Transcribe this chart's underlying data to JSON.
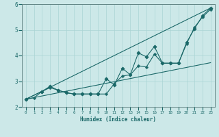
{
  "xlabel": "Humidex (Indice chaleur)",
  "ylabel": "",
  "xlim": [
    -0.5,
    23.5
  ],
  "ylim": [
    2,
    6
  ],
  "xticks": [
    0,
    1,
    2,
    3,
    4,
    5,
    6,
    7,
    8,
    9,
    10,
    11,
    12,
    13,
    14,
    15,
    16,
    17,
    18,
    19,
    20,
    21,
    22,
    23
  ],
  "yticks": [
    2,
    3,
    4,
    5,
    6
  ],
  "background_color": "#cce8e8",
  "grid_color": "#aad4d4",
  "line_color": "#1a6868",
  "lines": [
    {
      "x": [
        0,
        1,
        2,
        3,
        4,
        5,
        6,
        7,
        8,
        9,
        10,
        11,
        12,
        13,
        14,
        15,
        16,
        17,
        18,
        19,
        20,
        21,
        22,
        23
      ],
      "y": [
        2.3,
        2.35,
        2.6,
        2.75,
        2.65,
        2.55,
        2.5,
        2.5,
        2.5,
        2.5,
        2.5,
        2.9,
        3.2,
        3.25,
        3.6,
        3.55,
        4.05,
        3.7,
        3.7,
        3.7,
        4.45,
        5.1,
        5.5,
        5.8
      ],
      "marker": "P"
    },
    {
      "x": [
        0,
        2,
        3,
        4,
        5,
        6,
        7,
        8,
        9,
        10,
        11,
        12,
        13,
        14,
        15,
        16,
        17,
        18,
        19,
        20,
        21,
        22,
        23
      ],
      "y": [
        2.3,
        2.6,
        2.8,
        2.65,
        2.55,
        2.5,
        2.5,
        2.5,
        2.5,
        3.1,
        2.85,
        3.5,
        3.25,
        4.1,
        3.95,
        4.35,
        3.7,
        3.7,
        3.7,
        4.5,
        5.05,
        5.55,
        5.85
      ],
      "marker": "D"
    },
    {
      "x": [
        0,
        23
      ],
      "y": [
        2.3,
        5.85
      ],
      "marker": null
    },
    {
      "x": [
        0,
        23
      ],
      "y": [
        2.3,
        3.72
      ],
      "marker": null
    }
  ]
}
